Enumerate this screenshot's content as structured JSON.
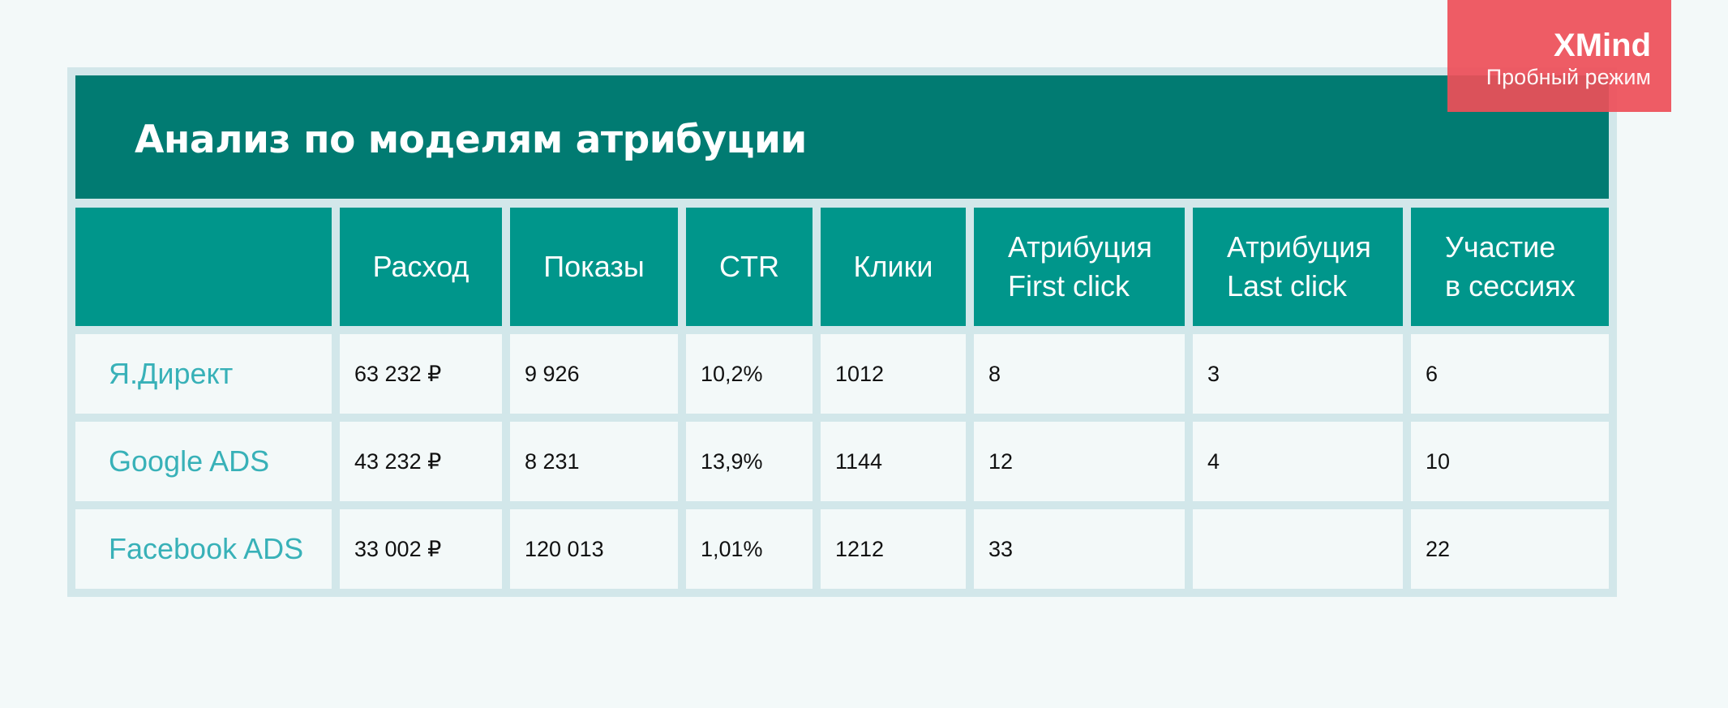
{
  "title": "Анализ по моделям атрибуции",
  "watermark": {
    "brand": "XMind",
    "subtitle": "Пробный режим"
  },
  "colors": {
    "title_bg": "#017b72",
    "header_bg": "#00968b",
    "grid": "#d2e7ea",
    "row_label": "#38b1b8",
    "watermark": "#ee4e58"
  },
  "columns": [
    "",
    "Расход",
    "Показы",
    "CTR",
    "Клики",
    "Атрибуция\nFirst click",
    "Атрибуция\nLast click",
    "Участие\nв сессиях"
  ],
  "rows": [
    {
      "name": "Я.Директ",
      "values": [
        "63 232 ₽",
        "9 926",
        "10,2%",
        "1012",
        "8",
        "3",
        "6"
      ]
    },
    {
      "name": "Google ADS",
      "values": [
        "43 232 ₽",
        "8 231",
        "13,9%",
        "1144",
        "12",
        "4",
        "10"
      ]
    },
    {
      "name": "Facebook ADS",
      "values": [
        "33 002 ₽",
        "120 013",
        "1,01%",
        "1212",
        "33",
        "",
        "22"
      ]
    }
  ]
}
